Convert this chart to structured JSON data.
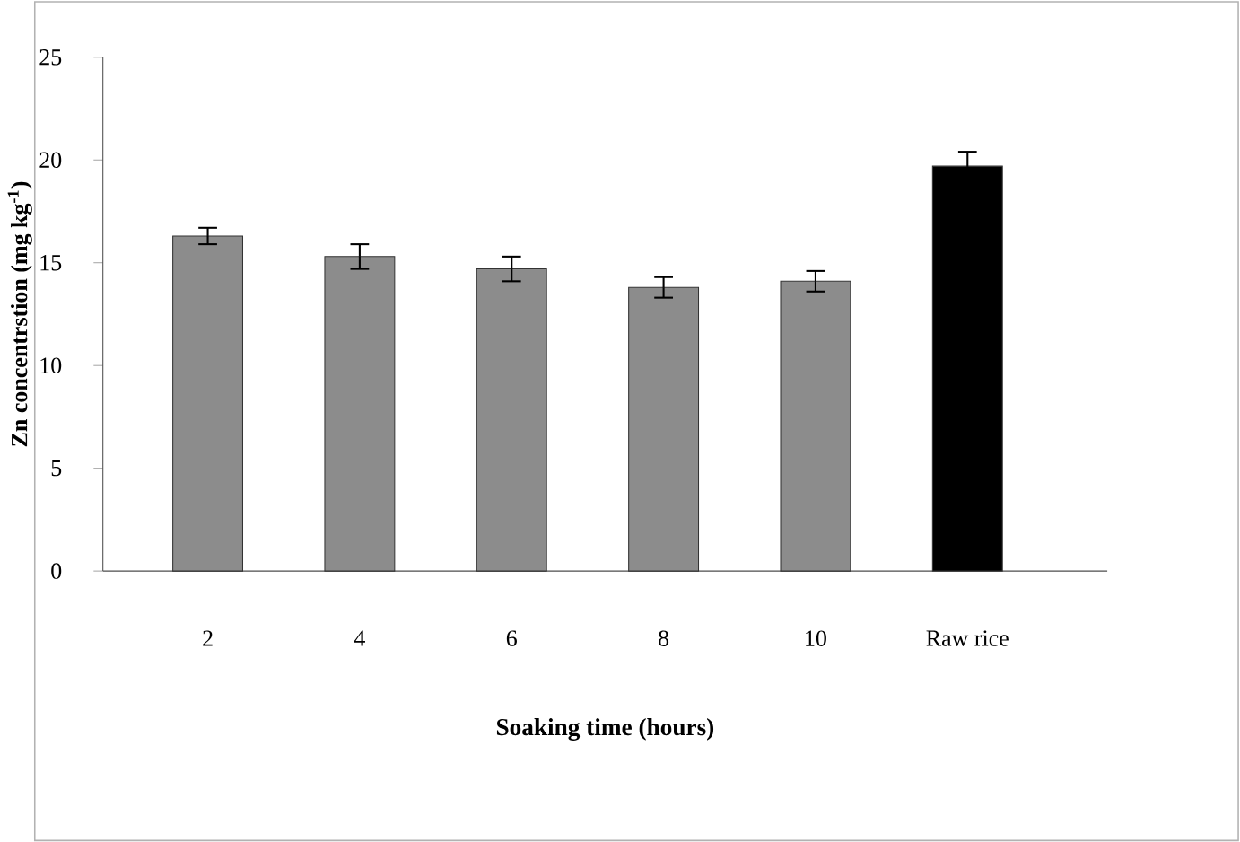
{
  "chart_data": {
    "type": "bar",
    "categories": [
      "2",
      "4",
      "6",
      "8",
      "10",
      "Raw rice"
    ],
    "values": [
      16.3,
      15.3,
      14.7,
      13.8,
      14.1,
      19.7
    ],
    "errors": [
      0.4,
      0.6,
      0.6,
      0.5,
      0.5,
      0.7
    ],
    "colors": [
      "#8c8c8c",
      "#8c8c8c",
      "#8c8c8c",
      "#8c8c8c",
      "#8c8c8c",
      "#000000"
    ],
    "xlabel": "Soaking time (hours)",
    "ylabel": "Zn concentrstion (mg kg$^{-1}$)",
    "ylim": [
      0,
      25
    ],
    "yticks": [
      0,
      5,
      10,
      15,
      20,
      25
    ]
  }
}
